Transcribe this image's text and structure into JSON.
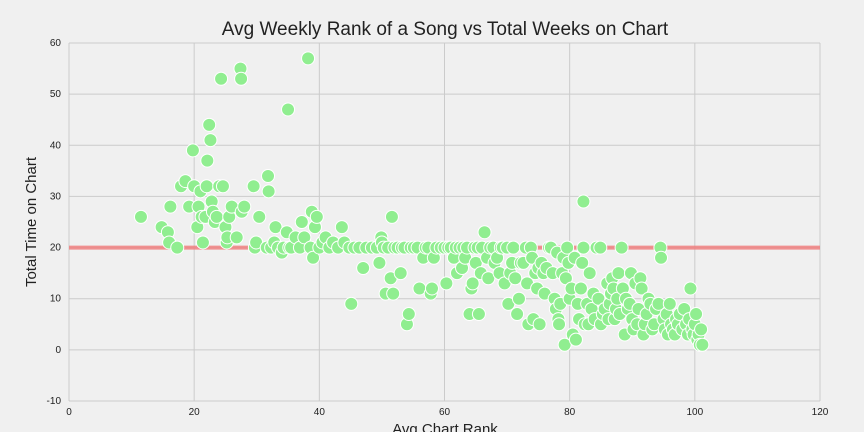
{
  "chart_data": {
    "type": "scatter",
    "title": "Avg Weekly Rank of a Song vs Total Weeks on Chart",
    "xlabel": "Avg Chart Rank",
    "ylabel": "Total Time on Chart",
    "xlim": [
      0,
      120
    ],
    "ylim": [
      -10,
      60
    ],
    "xticks": [
      0,
      20,
      40,
      60,
      80,
      100,
      120
    ],
    "yticks": [
      -10,
      0,
      10,
      20,
      30,
      40,
      50,
      60
    ],
    "grid": true,
    "point_color": "#90ee90",
    "point_edge_color": "#ffffff",
    "reference_line": {
      "y": 20,
      "color": "#f08080"
    },
    "points": [
      [
        11.5,
        26
      ],
      [
        14.8,
        24
      ],
      [
        15.8,
        23
      ],
      [
        16,
        21
      ],
      [
        16.2,
        28
      ],
      [
        17.3,
        20
      ],
      [
        17.9,
        32
      ],
      [
        18.6,
        33
      ],
      [
        19.2,
        28
      ],
      [
        19.8,
        39
      ],
      [
        20,
        32
      ],
      [
        20.5,
        24
      ],
      [
        20.7,
        28
      ],
      [
        21,
        31
      ],
      [
        21.2,
        26
      ],
      [
        21.4,
        21
      ],
      [
        21.8,
        26
      ],
      [
        22,
        32
      ],
      [
        22.1,
        37
      ],
      [
        22.4,
        44
      ],
      [
        22.6,
        41
      ],
      [
        22.8,
        29
      ],
      [
        23,
        27
      ],
      [
        23.3,
        25
      ],
      [
        23.6,
        26
      ],
      [
        24,
        32
      ],
      [
        24.3,
        53
      ],
      [
        24.6,
        32
      ],
      [
        25,
        24
      ],
      [
        25.2,
        21
      ],
      [
        25.3,
        22
      ],
      [
        25.6,
        26
      ],
      [
        26,
        28
      ],
      [
        26.8,
        22
      ],
      [
        27.4,
        55
      ],
      [
        27.5,
        53
      ],
      [
        27.6,
        27
      ],
      [
        28,
        28
      ],
      [
        29.5,
        32
      ],
      [
        29.7,
        20
      ],
      [
        29.9,
        21
      ],
      [
        30.4,
        26
      ],
      [
        31.6,
        20
      ],
      [
        31.8,
        34
      ],
      [
        31.9,
        31
      ],
      [
        32.3,
        20
      ],
      [
        32.8,
        21
      ],
      [
        33,
        24
      ],
      [
        33.4,
        20
      ],
      [
        34,
        19
      ],
      [
        34.3,
        20
      ],
      [
        34.8,
        23
      ],
      [
        35,
        47
      ],
      [
        35.2,
        20
      ],
      [
        35.5,
        20
      ],
      [
        36.2,
        22
      ],
      [
        36.9,
        20
      ],
      [
        37.2,
        25
      ],
      [
        37.6,
        22
      ],
      [
        38.2,
        57
      ],
      [
        38.6,
        20
      ],
      [
        38.8,
        27
      ],
      [
        39,
        18
      ],
      [
        39.3,
        24
      ],
      [
        39.6,
        26
      ],
      [
        40,
        20
      ],
      [
        40.5,
        21
      ],
      [
        41,
        22
      ],
      [
        41.6,
        20
      ],
      [
        42.2,
        21
      ],
      [
        43,
        20
      ],
      [
        43.6,
        24
      ],
      [
        44,
        21
      ],
      [
        44.8,
        20
      ],
      [
        45.1,
        9
      ],
      [
        45.6,
        20
      ],
      [
        46.4,
        20
      ],
      [
        47,
        16
      ],
      [
        47.5,
        20
      ],
      [
        48.4,
        20
      ],
      [
        49.2,
        20
      ],
      [
        49.6,
        17
      ],
      [
        49.9,
        22
      ],
      [
        50,
        21
      ],
      [
        50.3,
        20
      ],
      [
        50.6,
        11
      ],
      [
        51,
        20
      ],
      [
        51.4,
        14
      ],
      [
        51.6,
        26
      ],
      [
        51.8,
        11
      ],
      [
        52,
        20
      ],
      [
        52.5,
        20
      ],
      [
        53,
        15
      ],
      [
        53.2,
        20
      ],
      [
        53.6,
        20
      ],
      [
        54,
        5
      ],
      [
        54.3,
        7
      ],
      [
        54.6,
        20
      ],
      [
        55.1,
        20
      ],
      [
        55.7,
        20
      ],
      [
        56,
        12
      ],
      [
        56.6,
        18
      ],
      [
        57,
        20
      ],
      [
        57.4,
        20
      ],
      [
        57.8,
        11
      ],
      [
        58,
        12
      ],
      [
        58.3,
        18
      ],
      [
        58.7,
        20
      ],
      [
        59.4,
        20
      ],
      [
        60,
        20
      ],
      [
        60.3,
        13
      ],
      [
        60.6,
        20
      ],
      [
        61,
        20
      ],
      [
        61.5,
        18
      ],
      [
        61.8,
        20
      ],
      [
        62,
        15
      ],
      [
        62.4,
        20
      ],
      [
        62.8,
        16
      ],
      [
        63,
        20
      ],
      [
        63.3,
        18
      ],
      [
        63.6,
        20
      ],
      [
        64,
        7
      ],
      [
        64.3,
        12
      ],
      [
        64.5,
        13
      ],
      [
        64.8,
        20
      ],
      [
        65,
        17
      ],
      [
        65.3,
        20
      ],
      [
        65.5,
        7
      ],
      [
        65.8,
        15
      ],
      [
        66,
        20
      ],
      [
        66.4,
        23
      ],
      [
        66.8,
        18
      ],
      [
        67,
        14
      ],
      [
        67.3,
        20
      ],
      [
        67.8,
        20
      ],
      [
        68,
        17
      ],
      [
        68.4,
        18
      ],
      [
        68.8,
        15
      ],
      [
        69,
        20
      ],
      [
        69.3,
        20
      ],
      [
        69.6,
        13
      ],
      [
        70,
        20
      ],
      [
        70.2,
        9
      ],
      [
        70.5,
        15
      ],
      [
        70.8,
        17
      ],
      [
        71,
        20
      ],
      [
        71.3,
        14
      ],
      [
        71.6,
        7
      ],
      [
        71.9,
        10
      ],
      [
        72.2,
        17
      ],
      [
        72.6,
        17
      ],
      [
        73,
        20
      ],
      [
        73.2,
        13
      ],
      [
        73.4,
        5
      ],
      [
        73.8,
        20
      ],
      [
        74,
        18
      ],
      [
        74.2,
        6
      ],
      [
        74.5,
        15
      ],
      [
        74.8,
        12
      ],
      [
        75,
        16
      ],
      [
        75.2,
        5
      ],
      [
        75.5,
        17
      ],
      [
        75.8,
        15
      ],
      [
        76,
        11
      ],
      [
        76.3,
        16
      ],
      [
        76.7,
        20
      ],
      [
        77,
        20
      ],
      [
        77.3,
        15
      ],
      [
        77.6,
        10
      ],
      [
        77.8,
        8
      ],
      [
        78,
        19
      ],
      [
        78.2,
        6
      ],
      [
        78.3,
        5
      ],
      [
        78.5,
        9
      ],
      [
        78.8,
        15
      ],
      [
        79,
        18
      ],
      [
        79.2,
        1
      ],
      [
        79.4,
        14
      ],
      [
        79.6,
        20
      ],
      [
        79.8,
        17
      ],
      [
        80,
        10
      ],
      [
        80.3,
        12
      ],
      [
        80.5,
        3
      ],
      [
        80.8,
        18
      ],
      [
        81,
        2
      ],
      [
        81.3,
        9
      ],
      [
        81.5,
        6
      ],
      [
        81.8,
        12
      ],
      [
        82,
        17
      ],
      [
        82.2,
        20
      ],
      [
        82.2,
        29
      ],
      [
        82.4,
        5
      ],
      [
        82.8,
        9
      ],
      [
        83,
        5
      ],
      [
        83.2,
        15
      ],
      [
        83.5,
        8
      ],
      [
        83.8,
        11
      ],
      [
        84,
        6
      ],
      [
        84.3,
        20
      ],
      [
        84.6,
        10
      ],
      [
        84.9,
        20
      ],
      [
        85,
        5
      ],
      [
        85.3,
        7
      ],
      [
        85.6,
        8
      ],
      [
        86,
        13
      ],
      [
        86.2,
        6
      ],
      [
        86.4,
        9
      ],
      [
        86.6,
        11
      ],
      [
        86.8,
        14
      ],
      [
        87,
        12
      ],
      [
        87.2,
        6
      ],
      [
        87.4,
        8
      ],
      [
        87.6,
        10
      ],
      [
        87.8,
        15
      ],
      [
        88,
        7
      ],
      [
        88.3,
        20
      ],
      [
        88.5,
        12
      ],
      [
        88.8,
        3
      ],
      [
        89,
        10
      ],
      [
        89.3,
        8
      ],
      [
        89.6,
        9
      ],
      [
        89.8,
        15
      ],
      [
        90,
        6
      ],
      [
        90.2,
        4
      ],
      [
        90.5,
        13
      ],
      [
        90.8,
        5
      ],
      [
        91,
        8
      ],
      [
        91.3,
        14
      ],
      [
        91.5,
        12
      ],
      [
        91.8,
        3
      ],
      [
        92,
        5
      ],
      [
        92.3,
        7
      ],
      [
        92.6,
        10
      ],
      [
        92.9,
        9
      ],
      [
        93.2,
        4
      ],
      [
        93.5,
        5
      ],
      [
        93.8,
        8
      ],
      [
        94.2,
        9
      ],
      [
        94.5,
        20
      ],
      [
        94.6,
        18
      ],
      [
        95,
        6
      ],
      [
        95.2,
        4
      ],
      [
        95.5,
        7
      ],
      [
        95.7,
        3
      ],
      [
        96,
        9
      ],
      [
        96.2,
        5
      ],
      [
        96.5,
        4
      ],
      [
        96.8,
        3
      ],
      [
        97,
        6
      ],
      [
        97.3,
        5
      ],
      [
        97.6,
        7
      ],
      [
        98,
        4
      ],
      [
        98.3,
        8
      ],
      [
        98.6,
        5
      ],
      [
        98.9,
        3
      ],
      [
        99.1,
        6
      ],
      [
        99.3,
        12
      ],
      [
        99.6,
        4
      ],
      [
        99.8,
        3
      ],
      [
        100,
        5
      ],
      [
        100.2,
        7
      ],
      [
        100.4,
        2
      ],
      [
        100.6,
        3
      ],
      [
        100.8,
        1
      ],
      [
        101,
        4
      ],
      [
        101.2,
        1
      ]
    ]
  }
}
